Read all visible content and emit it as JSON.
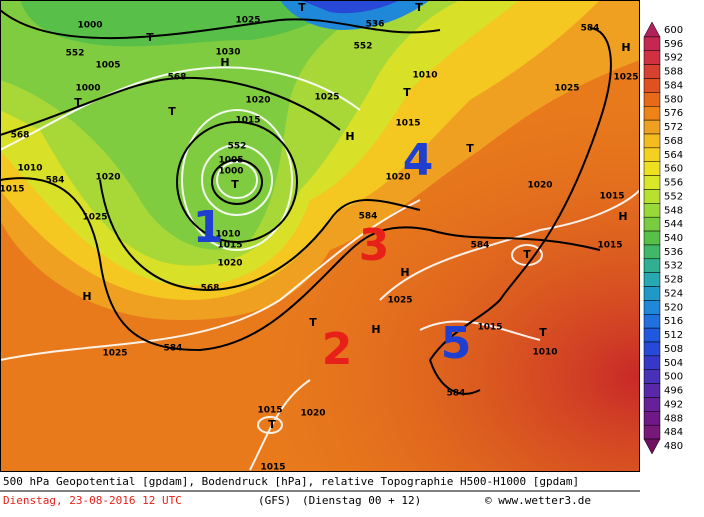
{
  "map": {
    "contour_labels": [
      "552",
      "552",
      "536",
      "568",
      "568",
      "552",
      "584",
      "584",
      "584",
      "584",
      "568",
      "584",
      "584",
      "1000",
      "1005",
      "1000",
      "1030",
      "1025",
      "1020",
      "1025",
      "1015",
      "1010",
      "1020",
      "1015",
      "1025",
      "1010",
      "1015",
      "1020",
      "1025",
      "1020",
      "1015",
      "1015",
      "1010",
      "1015",
      "1025",
      "1020",
      "1015",
      "1010",
      "1025",
      "1025",
      "1015",
      "1020",
      "1015",
      "1005",
      "1000"
    ],
    "pressure_markers": [
      "T",
      "H",
      "T",
      "T",
      "T",
      "H",
      "T",
      "T",
      "H",
      "H",
      "H",
      "T",
      "H",
      "H",
      "T",
      "T",
      "T",
      "T",
      "T"
    ],
    "annotations": [
      {
        "text": "1",
        "color": "#1f3fd0"
      },
      {
        "text": "2",
        "color": "#e8201a"
      },
      {
        "text": "3",
        "color": "#e8201a"
      },
      {
        "text": "4",
        "color": "#1f3fd0"
      },
      {
        "text": "5",
        "color": "#1f3fd0"
      }
    ]
  },
  "legend": {
    "levels": [
      600,
      596,
      592,
      588,
      584,
      580,
      576,
      572,
      568,
      564,
      560,
      556,
      552,
      548,
      544,
      540,
      536,
      532,
      528,
      524,
      520,
      516,
      512,
      508,
      504,
      500,
      496,
      492,
      488,
      484,
      480
    ],
    "colors": [
      "#b0205a",
      "#c42850",
      "#d03040",
      "#d84030",
      "#e05020",
      "#e86a18",
      "#ee8418",
      "#f0a020",
      "#f4bc20",
      "#f4d020",
      "#eee020",
      "#d8e828",
      "#b8e030",
      "#98d838",
      "#78cc40",
      "#58c048",
      "#40b868",
      "#30b090",
      "#28a8b0",
      "#2098c8",
      "#2088d8",
      "#2070e0",
      "#2058e0",
      "#2848d8",
      "#3838c8",
      "#4830b8",
      "#5828a8",
      "#682098",
      "#701888",
      "#781878",
      "#701060"
    ]
  },
  "footer": {
    "description": "500 hPa Geopotential [gpdam], Bodendruck [hPa], relative Topographie H500-H1000 [gpdam]",
    "date": "Dienstag, 23-08-2016  12 UTC",
    "model": "(GFS)",
    "run": "(Dienstag 00 + 12)",
    "copyright": "© www.wetter3.de"
  }
}
